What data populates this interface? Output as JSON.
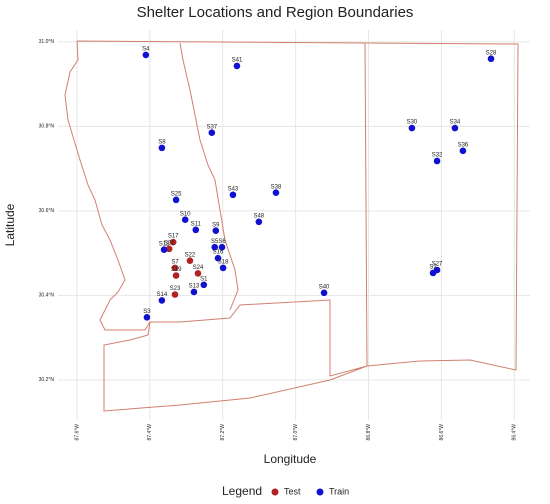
{
  "chart_data": {
    "type": "scatter",
    "title": "Shelter Locations and Region Boundaries",
    "x_label": "Longitude",
    "y_label": "Latitude",
    "legend_title": "Legend",
    "legend": "bottom",
    "grid": true,
    "xlim": [
      -87.652,
      -86.357
    ],
    "ylim": [
      30.105,
      31.028
    ],
    "xticks": [
      {
        "value": -87.6,
        "label": "87.6°W"
      },
      {
        "value": -87.4,
        "label": "87.4°W"
      },
      {
        "value": -87.2,
        "label": "87.2°W"
      },
      {
        "value": -87.0,
        "label": "87.0°W"
      },
      {
        "value": -86.8,
        "label": "86.8°W"
      },
      {
        "value": -86.6,
        "label": "86.6°W"
      },
      {
        "value": -86.4,
        "label": "86.4°W"
      }
    ],
    "yticks": [
      {
        "value": 30.2,
        "label": "30.2°N"
      },
      {
        "value": 30.4,
        "label": "30.4°N"
      },
      {
        "value": 30.6,
        "label": "30.6°N"
      },
      {
        "value": 30.8,
        "label": "30.8°N"
      },
      {
        "value": 31.0,
        "label": "31.0°N"
      }
    ],
    "series": [
      {
        "name": "Test",
        "color": "#b22222",
        "labels": [
          "S17",
          "S21",
          "S22",
          "S7",
          "S19",
          "S24",
          "S23"
        ],
        "x": [
          -87.336,
          -87.347,
          -87.29,
          -87.331,
          -87.328,
          -87.268,
          -87.331
        ],
        "y": [
          30.526,
          30.51,
          30.482,
          30.465,
          30.447,
          30.452,
          30.402
        ]
      },
      {
        "name": "Train",
        "color": "#1010d0",
        "labels": [
          "S4",
          "S41",
          "S28",
          "S37",
          "S30",
          "S34",
          "S36",
          "S32",
          "S8",
          "S43",
          "S38",
          "S25",
          "S48",
          "S10",
          "S11",
          "S9",
          "S12",
          "S5",
          "S6",
          "S16",
          "S18",
          "S27",
          "S2",
          "S40",
          "S14",
          "S3",
          "S1",
          "S13"
        ],
        "x": [
          -87.411,
          -87.161,
          -86.464,
          -87.23,
          -86.681,
          -86.563,
          -86.541,
          -86.612,
          -87.367,
          -87.172,
          -87.054,
          -87.328,
          -87.101,
          -87.303,
          -87.274,
          -87.219,
          -87.361,
          -87.222,
          -87.202,
          -87.213,
          -87.199,
          -86.612,
          -86.623,
          -86.922,
          -87.367,
          -87.408,
          -87.252,
          -87.279
        ],
        "y": [
          30.969,
          30.943,
          30.96,
          30.785,
          30.796,
          30.796,
          30.742,
          30.718,
          30.749,
          30.638,
          30.643,
          30.626,
          30.574,
          30.579,
          30.555,
          30.553,
          30.508,
          30.514,
          30.514,
          30.488,
          30.465,
          30.46,
          30.453,
          30.406,
          30.388,
          30.348,
          30.425,
          30.408
        ]
      }
    ]
  }
}
